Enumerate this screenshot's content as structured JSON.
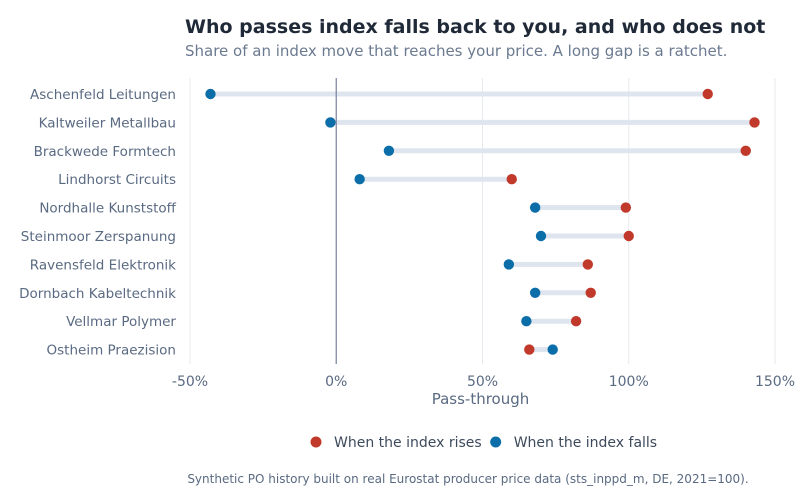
{
  "chart_data": {
    "type": "dumbbell",
    "title": "Who passes index falls back to you, and who does not",
    "subtitle": "Share of an index move that reaches your price. A long gap is a ratchet.",
    "xlabel": "Pass-through",
    "ylabel": "",
    "xlim": [
      -50,
      150
    ],
    "x_ticks": [
      -50,
      0,
      50,
      100,
      150
    ],
    "x_tick_labels": [
      "-50%",
      "0%",
      "50%",
      "100%",
      "150%"
    ],
    "grid": true,
    "legend_position": "bottom",
    "categories": [
      "Aschenfeld Leitungen",
      "Kaltweiler Metallbau",
      "Brackwede Formtech",
      "Lindhorst Circuits",
      "Nordhalle Kunststoff",
      "Steinmoor Zerspanung",
      "Ravensfeld Elektronik",
      "Dornbach Kabeltechnik",
      "Vellmar Polymer",
      "Ostheim Praezision"
    ],
    "series": [
      {
        "name": "When the index rises",
        "color": "#c0392b",
        "values": [
          127,
          143,
          140,
          60,
          99,
          100,
          86,
          87,
          82,
          66
        ]
      },
      {
        "name": "When the index falls",
        "color": "#0b6ea8",
        "values": [
          -43,
          -2,
          18,
          8,
          68,
          70,
          59,
          68,
          65,
          74
        ]
      }
    ],
    "caption": "Synthetic PO history built on real Eurostat producer price data (sts_inppd_m, DE, 2021=100)."
  }
}
